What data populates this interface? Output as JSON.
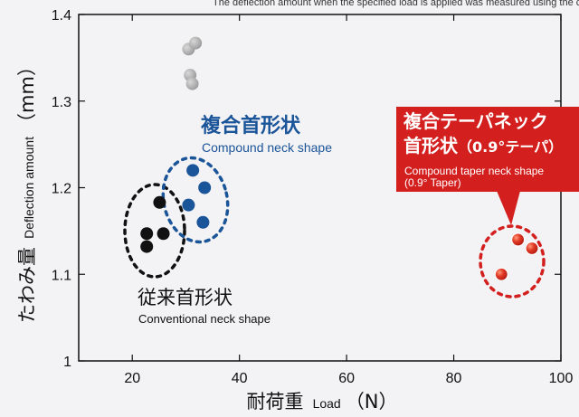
{
  "top_caption": "The deflection amount when the specified load is applied was measured using the compound taper neck shape",
  "chart_data": {
    "type": "scatter",
    "x": {
      "label_jp": "耐荷重",
      "label_en": "Load",
      "label_unit": "（N）",
      "range": [
        10,
        100
      ],
      "ticks": [
        20,
        40,
        60,
        80,
        100
      ]
    },
    "y": {
      "label_jp": "たわみ量",
      "label_en": "Deflection amount",
      "label_unit": "（mm）",
      "range": [
        1.0,
        1.4
      ],
      "ticks": [
        {
          "value": 1.0,
          "label": "1"
        },
        {
          "value": 1.1,
          "label": "1.1"
        },
        {
          "value": 1.2,
          "label": "1.2"
        },
        {
          "value": 1.3,
          "label": "1.3"
        },
        {
          "value": 1.4,
          "label": "1.4"
        }
      ]
    },
    "grid": false,
    "series": [
      {
        "key": "gray",
        "color": "#a6a6a6",
        "points": [
          [
            30.5,
            1.36
          ],
          [
            31.8,
            1.367
          ],
          [
            30.8,
            1.33
          ],
          [
            31.2,
            1.32
          ]
        ]
      },
      {
        "key": "conventional",
        "color": "#111111",
        "points": [
          [
            22.7,
            1.147
          ],
          [
            22.7,
            1.132
          ],
          [
            25.1,
            1.183
          ],
          [
            25.8,
            1.147
          ]
        ]
      },
      {
        "key": "compound",
        "color": "#1a5499",
        "points": [
          [
            31.3,
            1.22
          ],
          [
            33.5,
            1.2
          ],
          [
            30.5,
            1.18
          ],
          [
            33.2,
            1.16
          ]
        ]
      },
      {
        "key": "taper",
        "color": "#d41f1f",
        "points": [
          [
            92.0,
            1.14
          ],
          [
            94.6,
            1.13
          ],
          [
            88.9,
            1.1
          ]
        ]
      }
    ],
    "annotations": {
      "compound_jp": "複合首形状",
      "compound_en": "Compound neck shape",
      "conventional_jp": "従来首形状",
      "conventional_en": "Conventional neck shape",
      "taper_jp_line1": "複合テーパネック",
      "taper_jp_line2_bold": "首形状",
      "taper_jp_line2_rest": "（0.9°テーパ）",
      "taper_en_line1": "Compound taper neck shape",
      "taper_en_line2": "(0.9° Taper)"
    }
  }
}
